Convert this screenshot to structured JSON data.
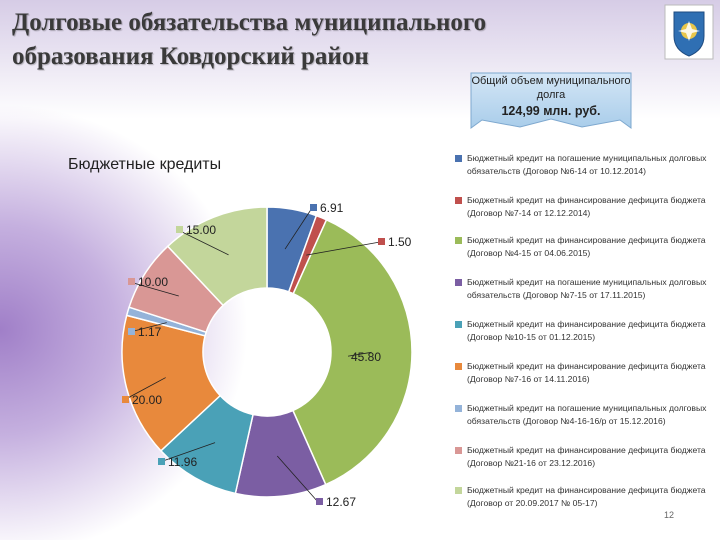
{
  "title": "Долговые обязательства муниципального образования Ковдорский район",
  "callout": {
    "label": "Общий объем муниципального долга",
    "total": "124,99 млн. руб."
  },
  "subtitle": "Бюджетные кредиты",
  "page_number": "12",
  "chart_data": {
    "type": "pie",
    "variant": "doughnut",
    "title": "Бюджетные кредиты",
    "value_format": "2 decimals",
    "series": [
      {
        "values": [
          6.91,
          1.5,
          45.8,
          12.67,
          11.96,
          20.0,
          1.17,
          10.0,
          15.0
        ]
      }
    ],
    "labels": [
      "Бюджетный кредит на погашение муниципальных долговых обязательств (Договор №6-14 от 10.12.2014)",
      "Бюджетный кредит на финансирование дефицита бюджета (Договор №7-14 от 12.12.2014)",
      "Бюджетный кредит на финансирование дефицита бюджета (Договор №4-15 от 04.06.2015)",
      "Бюджетный кредит на погашение муниципальных долговых обязательств (Договор №7-15 от 17.11.2015)",
      "Бюджетный кредит на финансирование дефицита бюджета (Договор №10-15 от 01.12.2015)",
      "Бюджетный кредит на финансирование дефицита бюджета (Договор №7-16 от 14.11.2016)",
      "Бюджетный кредит на погашение муниципальных долговых обязательств (Договор №4-16-16/р от 15.12.2016)",
      "Бюджетный кредит на финансирование дефицита бюджета (Договор №21-16 от 23.12.2016)",
      "Бюджетный кредит на финансирование дефицита бюджета (Договор от 20.09.2017 № 05-17)"
    ],
    "colors": [
      "#4a72b0",
      "#c0504d",
      "#9bbb59",
      "#7b5ea3",
      "#4aa1b7",
      "#e8893c",
      "#94b3d9",
      "#d99795",
      "#c3d69b"
    ],
    "legend": "right"
  }
}
